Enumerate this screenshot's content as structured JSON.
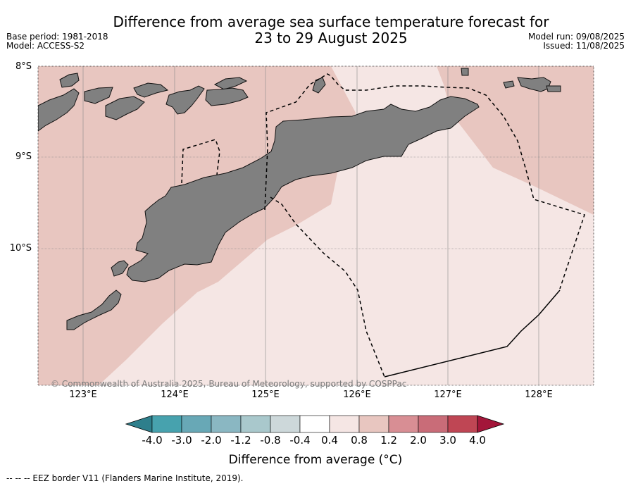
{
  "title": {
    "line1": "Difference from average sea surface temperature forecast for",
    "line2": "23 to 29 August 2025"
  },
  "meta": {
    "base_period": "Base period: 1981-2018",
    "model": "Model: ACCESS-S2",
    "model_run": "Model run: 09/08/2025",
    "issued": "Issued: 11/08/2025"
  },
  "map": {
    "latitude_labels": [
      "8°S",
      "9°S",
      "10°S"
    ],
    "longitude_labels": [
      "123°E",
      "124°E",
      "125°E",
      "126°E",
      "127°E",
      "128°E"
    ],
    "copyright": "© Commonwealth of Australia 2025, Bureau of Meteorology, supported by COSPPac",
    "colors": {
      "land": "#808080",
      "anomaly_0_4_to_0_8": "#f5e6e4",
      "anomaly_0_8_to_1_2": "#e8c6c0"
    }
  },
  "colorbar": {
    "tick_labels": [
      "-4.0",
      "-3.0",
      "-2.0",
      "-1.2",
      "-0.8",
      "-0.4",
      "0.4",
      "0.8",
      "1.2",
      "2.0",
      "3.0",
      "4.0"
    ],
    "colors": [
      "#2e7f8c",
      "#47a2ae",
      "#68a8b6",
      "#8ab7c2",
      "#a9c8cc",
      "#cdd8da",
      "#ffffff",
      "#f5e6e4",
      "#e8c6c0",
      "#d88e94",
      "#c96c78",
      "#bf4654",
      "#a3163a"
    ],
    "label": "Difference from average (°C)"
  },
  "footnote": "-- -- -- EEZ border V11 (Flanders Marine Institute, 2019)."
}
